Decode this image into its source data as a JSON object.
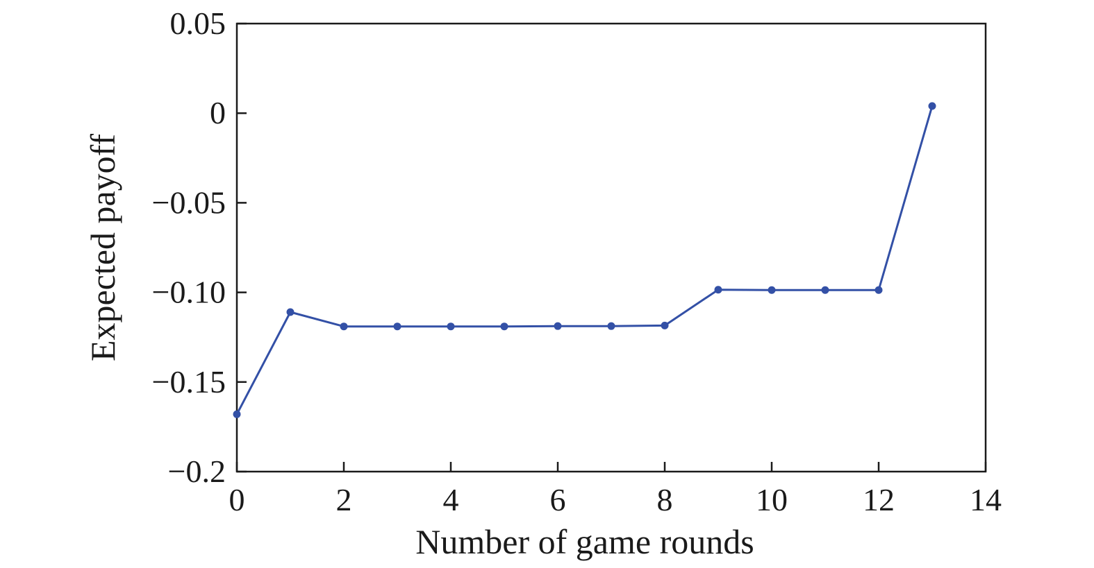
{
  "chart_data": {
    "type": "line",
    "title": "",
    "xlabel": "Number of game rounds",
    "ylabel": "Expected payoff",
    "xlim": [
      0,
      14
    ],
    "ylim": [
      -0.2,
      0.05
    ],
    "x_ticks": [
      0,
      2,
      4,
      6,
      8,
      10,
      12,
      14
    ],
    "x_tick_labels": [
      "0",
      "2",
      "4",
      "6",
      "8",
      "10",
      "12",
      "14"
    ],
    "y_ticks": [
      0.05,
      0,
      -0.05,
      -0.1,
      -0.15,
      -0.2
    ],
    "y_tick_labels": [
      "0.05",
      "0",
      "−0.05",
      "−0.10",
      "−0.15",
      "−0.2"
    ],
    "grid": false,
    "legend": "none",
    "series": [
      {
        "color": "#3350a6",
        "x": [
          0,
          1,
          2,
          3,
          4,
          5,
          6,
          7,
          8,
          9,
          10,
          11,
          12,
          13
        ],
        "y": [
          -0.168,
          -0.111,
          -0.119,
          -0.119,
          -0.119,
          -0.119,
          -0.1188,
          -0.1188,
          -0.1185,
          -0.0985,
          -0.0987,
          -0.0987,
          -0.0987,
          0.004
        ]
      }
    ]
  }
}
